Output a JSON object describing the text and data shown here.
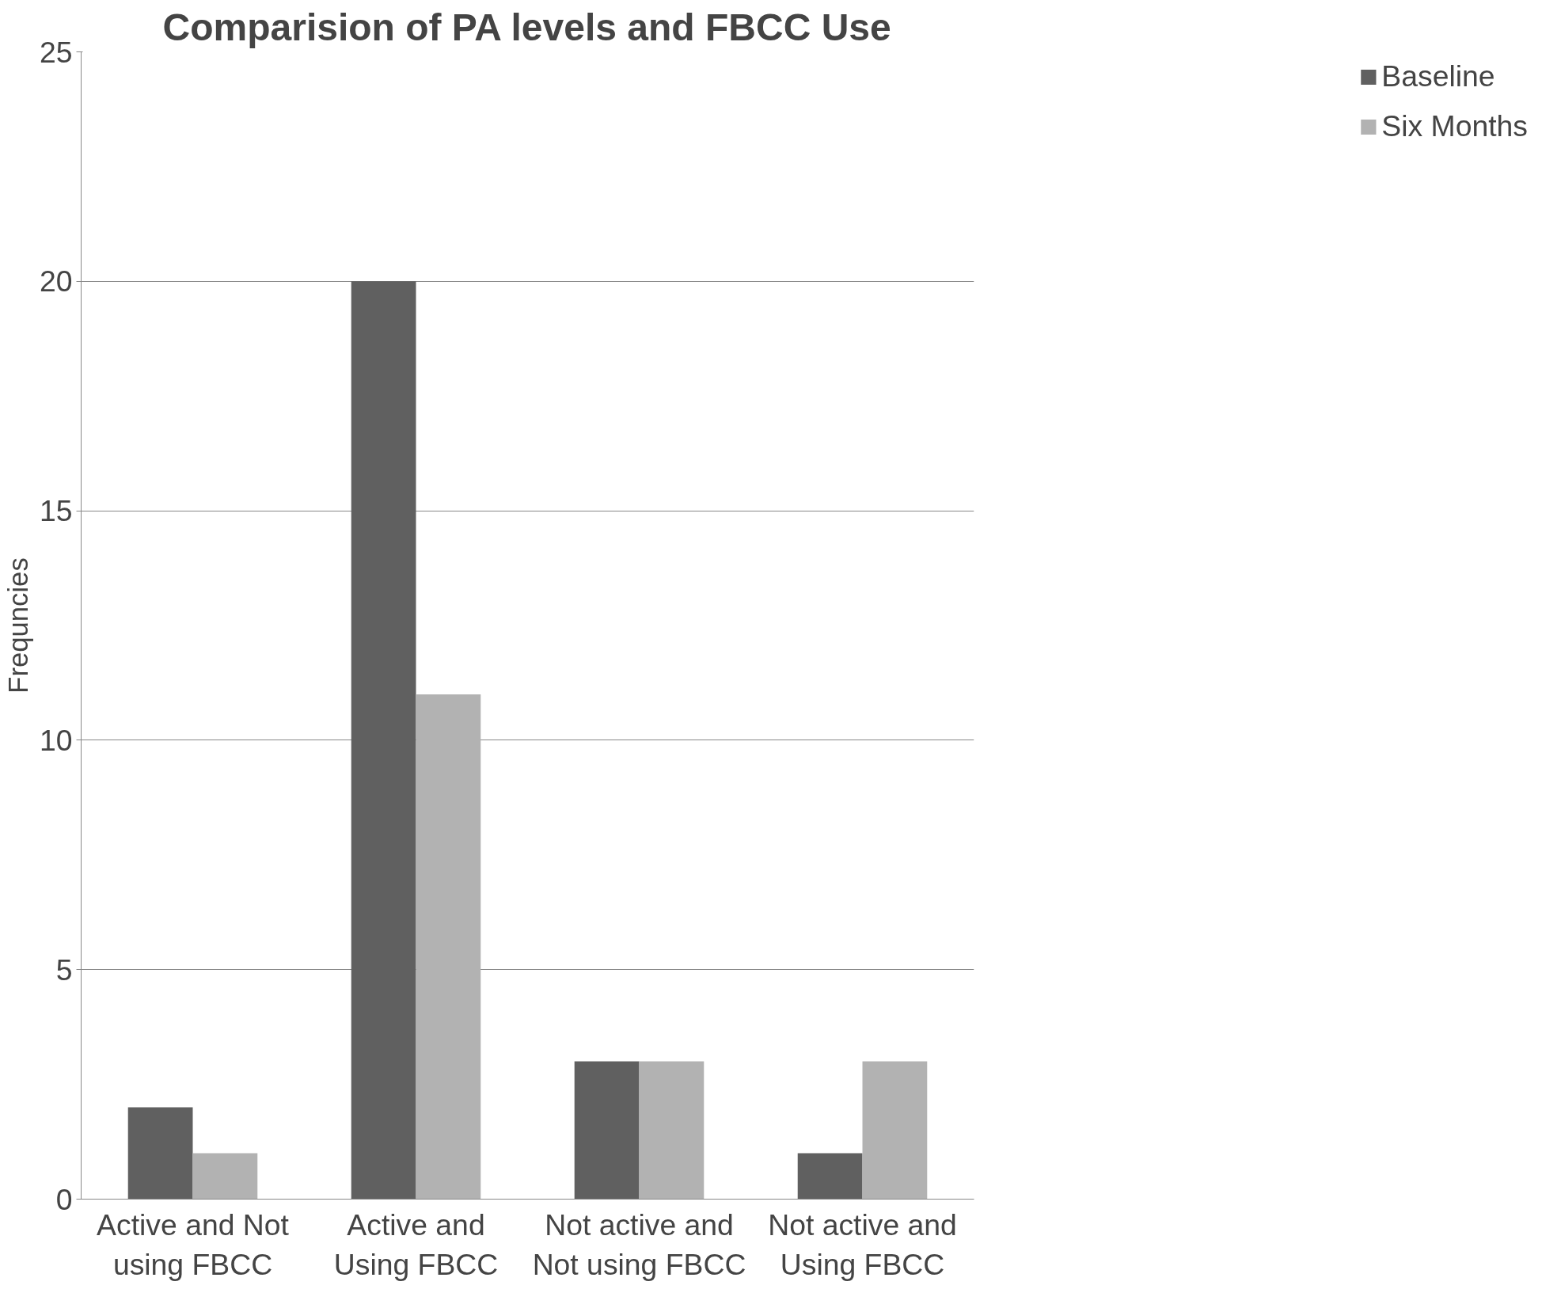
{
  "chart_data": {
    "type": "bar",
    "title": "Comparision of PA levels and FBCC Use",
    "ylabel": "Frequncies",
    "categories": [
      "Active and Not using FBCC",
      "Active and Using FBCC",
      "Not active and Not using FBCC",
      "Not active and Using FBCC"
    ],
    "series": [
      {
        "name": "Baseline",
        "color": "#606060",
        "values": [
          2,
          20,
          3,
          1
        ]
      },
      {
        "name": "Six Months",
        "color": "#b2b2b2",
        "values": [
          1,
          11,
          3,
          3
        ]
      }
    ],
    "ylim": [
      0,
      25
    ],
    "yticks": [
      0,
      5,
      10,
      15,
      20,
      25
    ],
    "grid": "y",
    "legend": "right"
  }
}
